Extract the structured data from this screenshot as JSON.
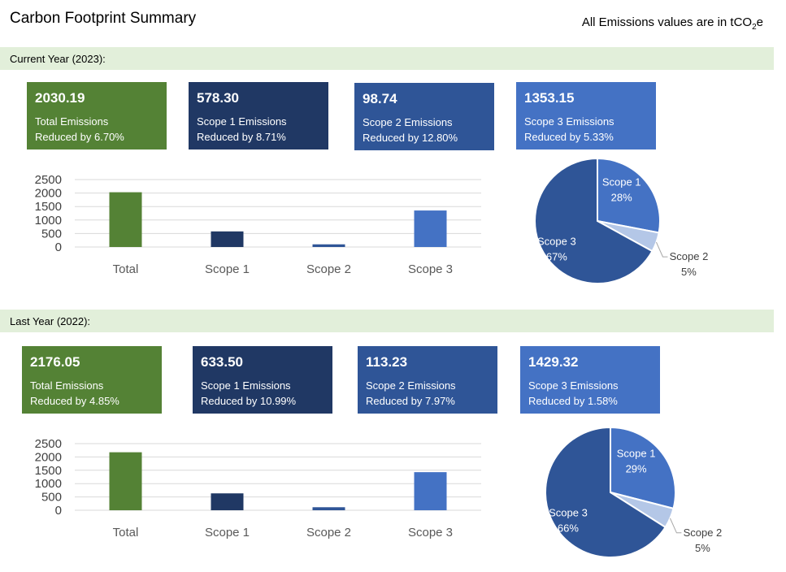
{
  "header": {
    "title": "Carbon Footprint Summary",
    "units_prefix": "All Emissions values are in tCO",
    "units_sub": "2",
    "units_suffix": "e"
  },
  "colors": {
    "total": "#548235",
    "scope1": "#203864",
    "scope2": "#2f5597",
    "scope3": "#4472c4",
    "pie_scope1": "#4472c4",
    "pie_scope2": "#b4c7e7",
    "pie_scope3": "#2f5597",
    "section_bg": "#e2efda"
  },
  "sections": [
    {
      "heading": "Current Year (2023):",
      "cards": [
        {
          "value": "2030.19",
          "label": "Total Emissions",
          "change": "Reduced by 6.70%"
        },
        {
          "value": "578.30",
          "label": "Scope 1 Emissions",
          "change": "Reduced by 8.71%"
        },
        {
          "value": "98.74",
          "label": "Scope 2 Emissions",
          "change": "Reduced by 12.80%"
        },
        {
          "value": "1353.15",
          "label": "Scope 3 Emissions",
          "change": "Reduced by 5.33%"
        }
      ]
    },
    {
      "heading": "Last Year (2022):",
      "cards": [
        {
          "value": "2176.05",
          "label": "Total Emissions",
          "change": "Reduced by 4.85%"
        },
        {
          "value": "633.50",
          "label": "Scope 1 Emissions",
          "change": "Reduced by 10.99%"
        },
        {
          "value": "113.23",
          "label": "Scope 2 Emissions",
          "change": "Reduced by 7.97%"
        },
        {
          "value": "1429.32",
          "label": "Scope 3 Emissions",
          "change": "Reduced by 1.58%"
        }
      ]
    }
  ],
  "chart_data": [
    {
      "type": "bar",
      "categories": [
        "Total",
        "Scope 1",
        "Scope 2",
        "Scope 3"
      ],
      "values": [
        2030.19,
        578.3,
        98.74,
        1353.15
      ],
      "yticks": [
        "0",
        "500",
        "1000",
        "1500",
        "2000",
        "2500"
      ],
      "ylim": [
        0,
        2500
      ],
      "grid": true
    },
    {
      "type": "pie",
      "labels": [
        "Scope 1",
        "Scope 2",
        "Scope 3"
      ],
      "values": [
        28,
        5,
        67
      ],
      "data_labels": [
        "28%",
        "5%",
        "67%"
      ]
    },
    {
      "type": "bar",
      "categories": [
        "Total",
        "Scope 1",
        "Scope 2",
        "Scope 3"
      ],
      "values": [
        2176.05,
        633.5,
        113.23,
        1429.32
      ],
      "yticks": [
        "0",
        "500",
        "1000",
        "1500",
        "2000",
        "2500"
      ],
      "ylim": [
        0,
        2500
      ],
      "grid": true
    },
    {
      "type": "pie",
      "labels": [
        "Scope 1",
        "Scope 2",
        "Scope 3"
      ],
      "values": [
        29,
        5,
        66
      ],
      "data_labels": [
        "29%",
        "5%",
        "66%"
      ]
    }
  ]
}
